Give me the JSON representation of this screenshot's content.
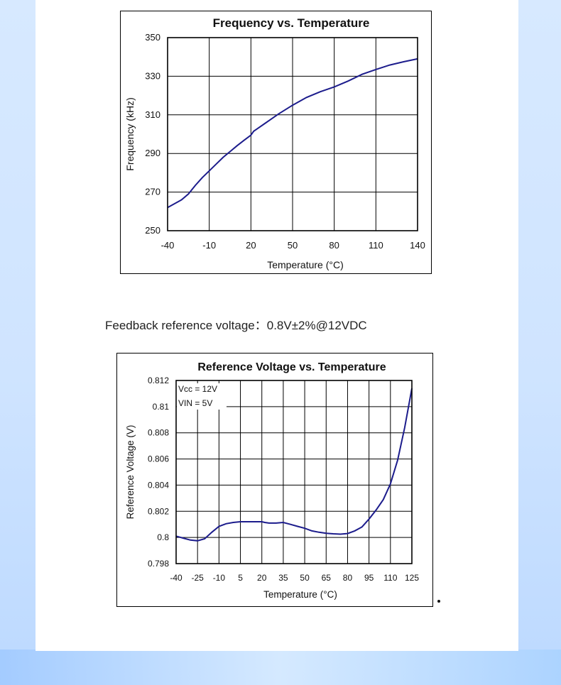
{
  "spec_line": "Feedback reference voltage：0.8V±2%@12VDC",
  "chart_data": [
    {
      "type": "line",
      "title": "Frequency vs. Temperature",
      "xlabel": "Temperature (°C)",
      "ylabel": "Frequency (kHz)",
      "xlim": [
        -40,
        140
      ],
      "ylim": [
        250,
        350
      ],
      "x_ticks": [
        "-40",
        "-10",
        "20",
        "50",
        "80",
        "110",
        "140"
      ],
      "y_ticks": [
        "250",
        "270",
        "290",
        "310",
        "330",
        "350"
      ],
      "grid": true,
      "series": [
        {
          "x": [
            -40,
            -30,
            -25,
            -20,
            -15,
            -10,
            -5,
            0,
            5,
            10,
            15,
            20,
            22,
            25,
            30,
            35,
            40,
            50,
            60,
            70,
            80,
            90,
            100,
            110,
            120,
            130,
            140
          ],
          "y": [
            262,
            266,
            269,
            273.5,
            277.5,
            281,
            284.5,
            288,
            291,
            294,
            296.8,
            299.5,
            301.5,
            303,
            305.5,
            308,
            310.5,
            315,
            319,
            322,
            324.5,
            327.5,
            331,
            333.5,
            335.8,
            337.5,
            339
          ]
        }
      ]
    },
    {
      "type": "line",
      "title": "Reference Voltage vs. Temperature",
      "xlabel": "Temperature (°C)",
      "ylabel": "Reference Voltage (V)",
      "xlim": [
        -40,
        125
      ],
      "ylim": [
        0.798,
        0.812
      ],
      "x_ticks": [
        "-40",
        "-25",
        "-10",
        "5",
        "20",
        "35",
        "50",
        "65",
        "80",
        "95",
        "110",
        "125"
      ],
      "y_ticks": [
        "0.798",
        "0.8",
        "0.802",
        "0.804",
        "0.806",
        "0.808",
        "0.81",
        "0.812"
      ],
      "grid": true,
      "annotations": [
        "Vcc = 12V",
        "VIN = 5V"
      ],
      "series": [
        {
          "x": [
            -40,
            -35,
            -30,
            -25,
            -20,
            -15,
            -10,
            -5,
            0,
            5,
            10,
            15,
            20,
            22,
            25,
            30,
            35,
            40,
            45,
            50,
            55,
            60,
            65,
            70,
            75,
            80,
            85,
            90,
            95,
            100,
            105,
            110,
            115,
            120,
            125
          ],
          "y": [
            0.8001,
            0.79995,
            0.7998,
            0.79975,
            0.7999,
            0.8004,
            0.80085,
            0.80105,
            0.80115,
            0.8012,
            0.8012,
            0.8012,
            0.8012,
            0.80115,
            0.8011,
            0.8011,
            0.80115,
            0.801,
            0.80085,
            0.8007,
            0.8005,
            0.8004,
            0.80032,
            0.80028,
            0.80025,
            0.8003,
            0.8005,
            0.8008,
            0.8014,
            0.8021,
            0.8029,
            0.8041,
            0.8059,
            0.8084,
            0.8114
          ]
        }
      ]
    }
  ]
}
